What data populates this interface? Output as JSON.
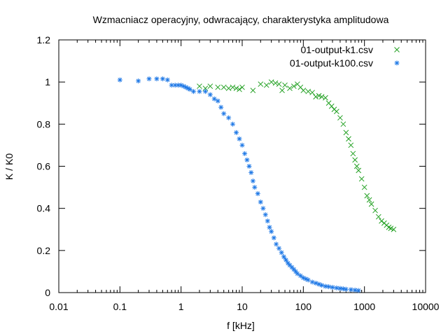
{
  "chart_data": {
    "type": "scatter",
    "title": "Wzmacniacz operacyjny, odwracający, charakterystyka amplitudowa",
    "xlabel": "f [kHz]",
    "ylabel": "K / K0",
    "xscale": "log",
    "xlim": [
      0.01,
      10000
    ],
    "ylim": [
      0,
      1.2
    ],
    "x_ticks": [
      0.01,
      0.1,
      1,
      10,
      100,
      1000,
      10000
    ],
    "x_tick_labels": [
      "0.01",
      "0.1",
      "1",
      "10",
      "100",
      "1000",
      "10000"
    ],
    "y_ticks": [
      0,
      0.2,
      0.4,
      0.6,
      0.8,
      1,
      1.2
    ],
    "y_tick_labels": [
      "0",
      "0.2",
      "0.4",
      "0.6",
      "0.8",
      "1",
      "1.2"
    ],
    "grid": false,
    "legend": "top-right",
    "series": [
      {
        "name": "01-output-k1.csv",
        "marker": "x",
        "color": "#22a022",
        "x": [
          2,
          2.5,
          3,
          4,
          5,
          6,
          7,
          8,
          9,
          10,
          15,
          20,
          25,
          30,
          35,
          40,
          45,
          50,
          60,
          70,
          80,
          90,
          100,
          120,
          140,
          160,
          180,
          200,
          230,
          260,
          290,
          320,
          350,
          400,
          450,
          500,
          550,
          600,
          650,
          700,
          750,
          800,
          900,
          1000,
          1100,
          1200,
          1300,
          1500,
          1700,
          1900,
          2100,
          2300,
          2500,
          2700,
          3000
        ],
        "y": [
          0.98,
          0.97,
          0.98,
          0.975,
          0.975,
          0.97,
          0.975,
          0.97,
          0.965,
          0.975,
          0.96,
          0.99,
          0.985,
          1.0,
          0.995,
          0.99,
          0.96,
          0.985,
          0.97,
          0.98,
          0.99,
          0.975,
          0.96,
          0.955,
          0.95,
          0.93,
          0.935,
          0.93,
          0.925,
          0.9,
          0.885,
          0.87,
          0.86,
          0.83,
          0.8,
          0.76,
          0.73,
          0.7,
          0.66,
          0.63,
          0.6,
          0.58,
          0.54,
          0.5,
          0.46,
          0.44,
          0.42,
          0.39,
          0.36,
          0.34,
          0.33,
          0.32,
          0.31,
          0.305,
          0.3
        ]
      },
      {
        "name": "01-output-k100.csv",
        "marker": "*",
        "color": "#1e78e6",
        "x": [
          0.1,
          0.2,
          0.3,
          0.4,
          0.5,
          0.6,
          0.7,
          0.8,
          0.9,
          1.0,
          1.1,
          1.2,
          1.3,
          1.4,
          1.6,
          2,
          2.5,
          3,
          3.5,
          4,
          4.5,
          5,
          6,
          7,
          8,
          9,
          10,
          11,
          12,
          13,
          14,
          15,
          16,
          18,
          20,
          22,
          24,
          26,
          28,
          30,
          33,
          36,
          40,
          44,
          48,
          52,
          56,
          60,
          65,
          70,
          75,
          80,
          90,
          100,
          110,
          120,
          140,
          160,
          180,
          200,
          230,
          260,
          300,
          350,
          400,
          450,
          500,
          600,
          700,
          800
        ],
        "y": [
          1.01,
          1.005,
          1.015,
          1.015,
          1.015,
          1.01,
          0.985,
          0.985,
          0.985,
          0.985,
          0.98,
          0.975,
          0.97,
          0.965,
          0.955,
          0.955,
          0.955,
          0.94,
          0.92,
          0.91,
          0.88,
          0.85,
          0.83,
          0.8,
          0.76,
          0.73,
          0.7,
          0.66,
          0.63,
          0.6,
          0.57,
          0.53,
          0.5,
          0.47,
          0.43,
          0.4,
          0.37,
          0.34,
          0.31,
          0.29,
          0.26,
          0.23,
          0.21,
          0.19,
          0.17,
          0.155,
          0.14,
          0.13,
          0.12,
          0.11,
          0.1,
          0.09,
          0.08,
          0.07,
          0.065,
          0.06,
          0.05,
          0.045,
          0.04,
          0.035,
          0.03,
          0.028,
          0.025,
          0.022,
          0.02,
          0.018,
          0.016,
          0.014,
          0.012,
          0.01
        ]
      }
    ]
  }
}
